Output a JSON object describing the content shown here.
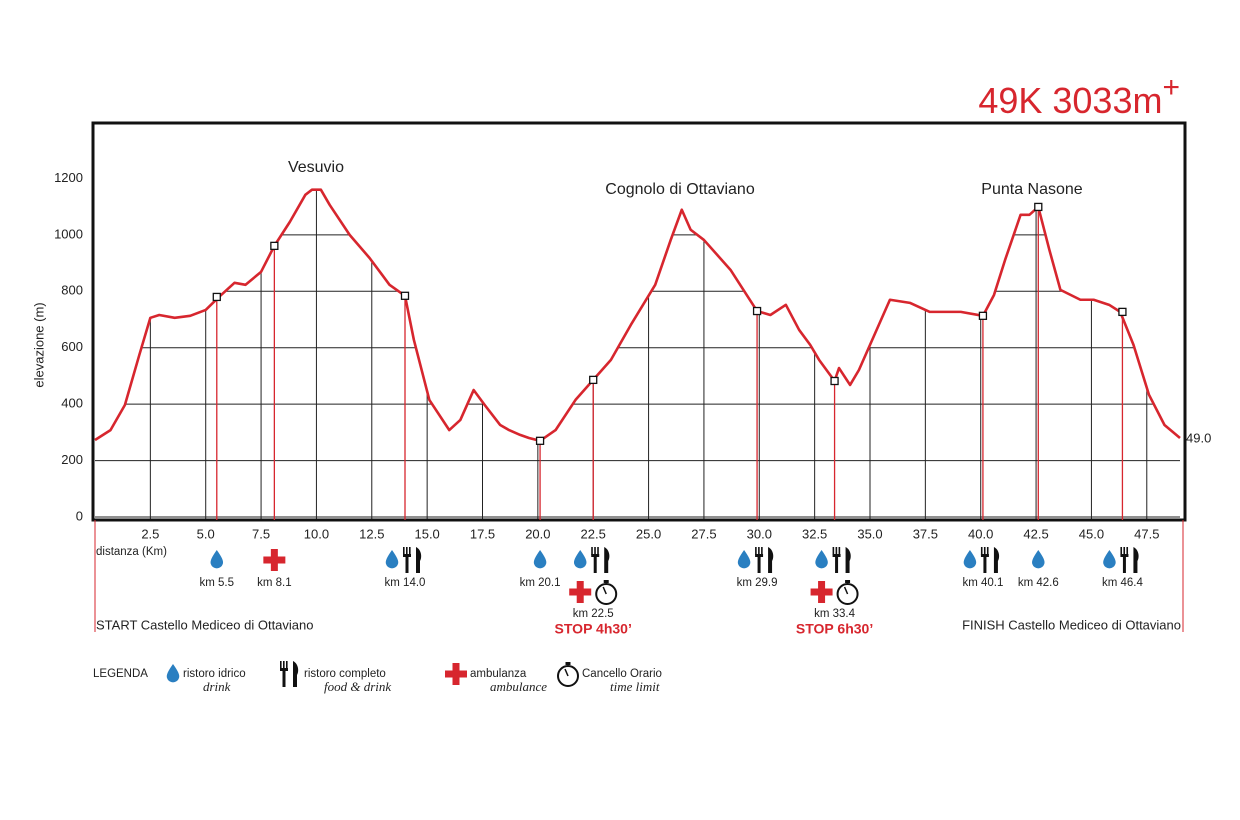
{
  "chart_data": {
    "type": "line",
    "title": "49K 3033m",
    "title_superscript": "+",
    "y_label": "elevazione (m)",
    "x_label": "distanza (Km)",
    "end_label": "49.0",
    "color": "#d7262e",
    "grid": true,
    "xlim": [
      0,
      49
    ],
    "ylim": [
      0,
      1400
    ],
    "xticks": [
      2.5,
      {
        "value": 5,
        "label": "5.0"
      },
      7.5,
      {
        "value": 10,
        "label": "10.0"
      },
      12.5,
      {
        "value": 15,
        "label": "15.0"
      },
      17.5,
      {
        "value": 20,
        "label": "20.0"
      },
      22.5,
      {
        "value": 25,
        "label": "25.0"
      },
      27.5,
      {
        "value": 30,
        "label": "30.0"
      },
      32.5,
      {
        "value": 35,
        "label": "35.0"
      },
      37.5,
      {
        "value": 40,
        "label": "40.0"
      },
      42.5,
      {
        "value": 45,
        "label": "45.0"
      },
      47.5
    ],
    "yticks": [
      0,
      200,
      400,
      600,
      800,
      1000,
      1200
    ],
    "x": [
      0,
      0.7,
      1.35,
      2.0,
      2.5,
      2.9,
      3.6,
      4.3,
      5.0,
      5.6,
      6.3,
      6.8,
      7.5,
      8.1,
      8.8,
      9.5,
      9.8,
      10.2,
      10.6,
      11.5,
      12.4,
      13.3,
      14.0,
      14.4,
      15.1,
      16.0,
      16.5,
      17.1,
      17.6,
      18.3,
      18.7,
      19.2,
      19.6,
      20.1,
      20.8,
      21.7,
      22.5,
      23.3,
      24.2,
      25.3,
      26.0,
      26.5,
      26.9,
      27.5,
      28.7,
      29.9,
      30.5,
      31.2,
      31.8,
      32.3,
      32.7,
      33.4,
      33.6,
      34.1,
      34.5,
      35.0,
      35.9,
      36.8,
      37.7,
      39.1,
      40.1,
      40.6,
      41.1,
      41.8,
      42.2,
      42.6,
      43.1,
      43.6,
      44.5,
      45.1,
      45.8,
      46.3,
      46.9,
      47.6,
      48.3,
      49.0
    ],
    "values": [
      273,
      308,
      397,
      574,
      706,
      716,
      706,
      713,
      734,
      780,
      830,
      823,
      869,
      961,
      1046,
      1142,
      1160,
      1160,
      1106,
      1000,
      918,
      823,
      784,
      628,
      415,
      308,
      344,
      450,
      397,
      326,
      308,
      291,
      280,
      270,
      308,
      415,
      486,
      557,
      681,
      823,
      982,
      1089,
      1018,
      982,
      876,
      730,
      716,
      752,
      663,
      610,
      557,
      482,
      528,
      468,
      521,
      610,
      770,
      759,
      727,
      727,
      713,
      787,
      911,
      1071,
      1071,
      1099,
      947,
      805,
      770,
      770,
      752,
      727,
      610,
      433,
      326,
      280
    ],
    "annotations": [
      "Vesuvio",
      "Cognolo di Ottaviano",
      "Punta Nasone"
    ],
    "stations": [
      {
        "km": 5.5,
        "label": "km 5.5",
        "elevation": 780,
        "services": [
          [
            "water"
          ]
        ]
      },
      {
        "km": 8.1,
        "label": "km 8.1",
        "elevation": 961,
        "services": [
          [
            "ambulance"
          ]
        ]
      },
      {
        "km": 14.0,
        "label": "km 14.0",
        "elevation": 784,
        "services": [
          [
            "water",
            "food"
          ]
        ]
      },
      {
        "km": 20.1,
        "label": "km 20.1",
        "elevation": 270,
        "services": [
          [
            "water"
          ]
        ]
      },
      {
        "km": 22.5,
        "label": "km 22.5",
        "elevation": 486,
        "services": [
          [
            "water",
            "food"
          ],
          [
            "ambulance",
            "timer"
          ]
        ],
        "stop": "STOP 4h30’"
      },
      {
        "km": 29.9,
        "label": "km 29.9",
        "elevation": 730,
        "services": [
          [
            "water",
            "food"
          ]
        ]
      },
      {
        "km": 33.4,
        "label": "km 33.4",
        "elevation": 482,
        "services": [
          [
            "water",
            "food"
          ],
          [
            "ambulance",
            "timer"
          ]
        ],
        "stop": "STOP 6h30’"
      },
      {
        "km": 40.1,
        "label": "km 40.1",
        "elevation": 713,
        "services": [
          [
            "water",
            "food"
          ]
        ]
      },
      {
        "km": 42.6,
        "label": "km 42.6",
        "elevation": 1099,
        "services": [
          [
            "water"
          ]
        ]
      },
      {
        "km": 46.4,
        "label": "km 46.4",
        "elevation": 727,
        "services": [
          [
            "water",
            "food"
          ]
        ]
      }
    ],
    "start": "START Castello Mediceo di Ottaviano",
    "finish": "FINISH Castello Mediceo di Ottaviano",
    "legend_title": "LEGENDA",
    "legend": [
      {
        "icon": "water",
        "name": "ristoro idrico",
        "translation": "drink"
      },
      {
        "icon": "food",
        "name": "ristoro completo",
        "translation": "food & drink"
      },
      {
        "icon": "ambulance",
        "name": "ambulanza",
        "translation": "ambulance"
      },
      {
        "icon": "timer",
        "name": "Cancello Orario",
        "translation": "time limit"
      }
    ]
  }
}
